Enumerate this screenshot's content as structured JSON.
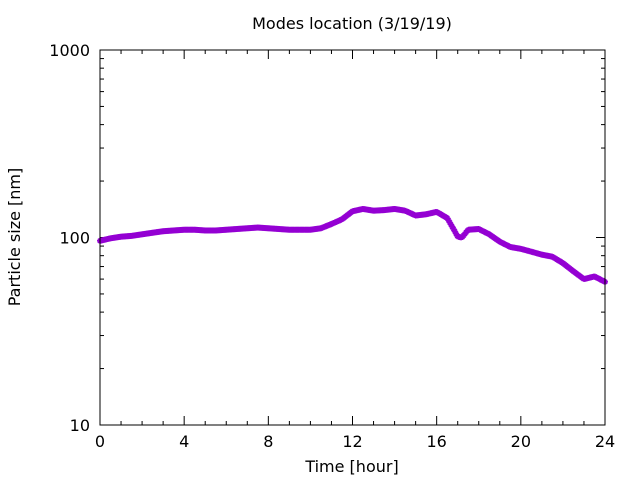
{
  "chart_data": {
    "type": "scatter",
    "title": "Modes location (3/19/19)",
    "xlabel": "Time [hour]",
    "ylabel": "Particle size [nm]",
    "xlim": [
      0,
      24
    ],
    "ylim": [
      10,
      1000
    ],
    "yscale": "log",
    "xticks": [
      0,
      4,
      8,
      12,
      16,
      20,
      24
    ],
    "xtick_labels": [
      "0",
      "4",
      "8",
      "12",
      "16",
      "20",
      "24"
    ],
    "yticks": [
      10,
      100,
      1000
    ],
    "ytick_labels": [
      "10",
      "100",
      "1000"
    ],
    "grid": false,
    "legend": false,
    "color": "#9400D3",
    "marker": "star",
    "series": [
      {
        "x": [
          0.0,
          0.5,
          1.0,
          1.5,
          2.0,
          2.5,
          3.0,
          3.5,
          4.0,
          4.5,
          5.0,
          5.5,
          6.0,
          6.5,
          7.0,
          7.5,
          8.0,
          8.5,
          9.0,
          9.5,
          10.0,
          10.5,
          11.0,
          11.5,
          12.0,
          12.5,
          13.0,
          13.5,
          14.0,
          14.5,
          15.0,
          15.5,
          16.0,
          16.5,
          16.8,
          17.0,
          17.2,
          17.5,
          18.0,
          18.5,
          19.0,
          19.5,
          20.0,
          20.5,
          21.0,
          21.5,
          22.0,
          22.5,
          23.0,
          23.5,
          24.0
        ],
        "y": [
          96,
          99,
          101,
          102,
          104,
          106,
          108,
          109,
          110,
          110,
          109,
          109,
          110,
          111,
          112,
          113,
          112,
          111,
          110,
          110,
          110,
          112,
          118,
          125,
          138,
          142,
          139,
          140,
          142,
          139,
          131,
          133,
          137,
          127,
          111,
          101,
          100,
          110,
          111,
          104,
          95,
          89,
          87,
          84,
          81,
          79,
          73,
          66,
          60,
          62,
          58
        ]
      }
    ]
  }
}
